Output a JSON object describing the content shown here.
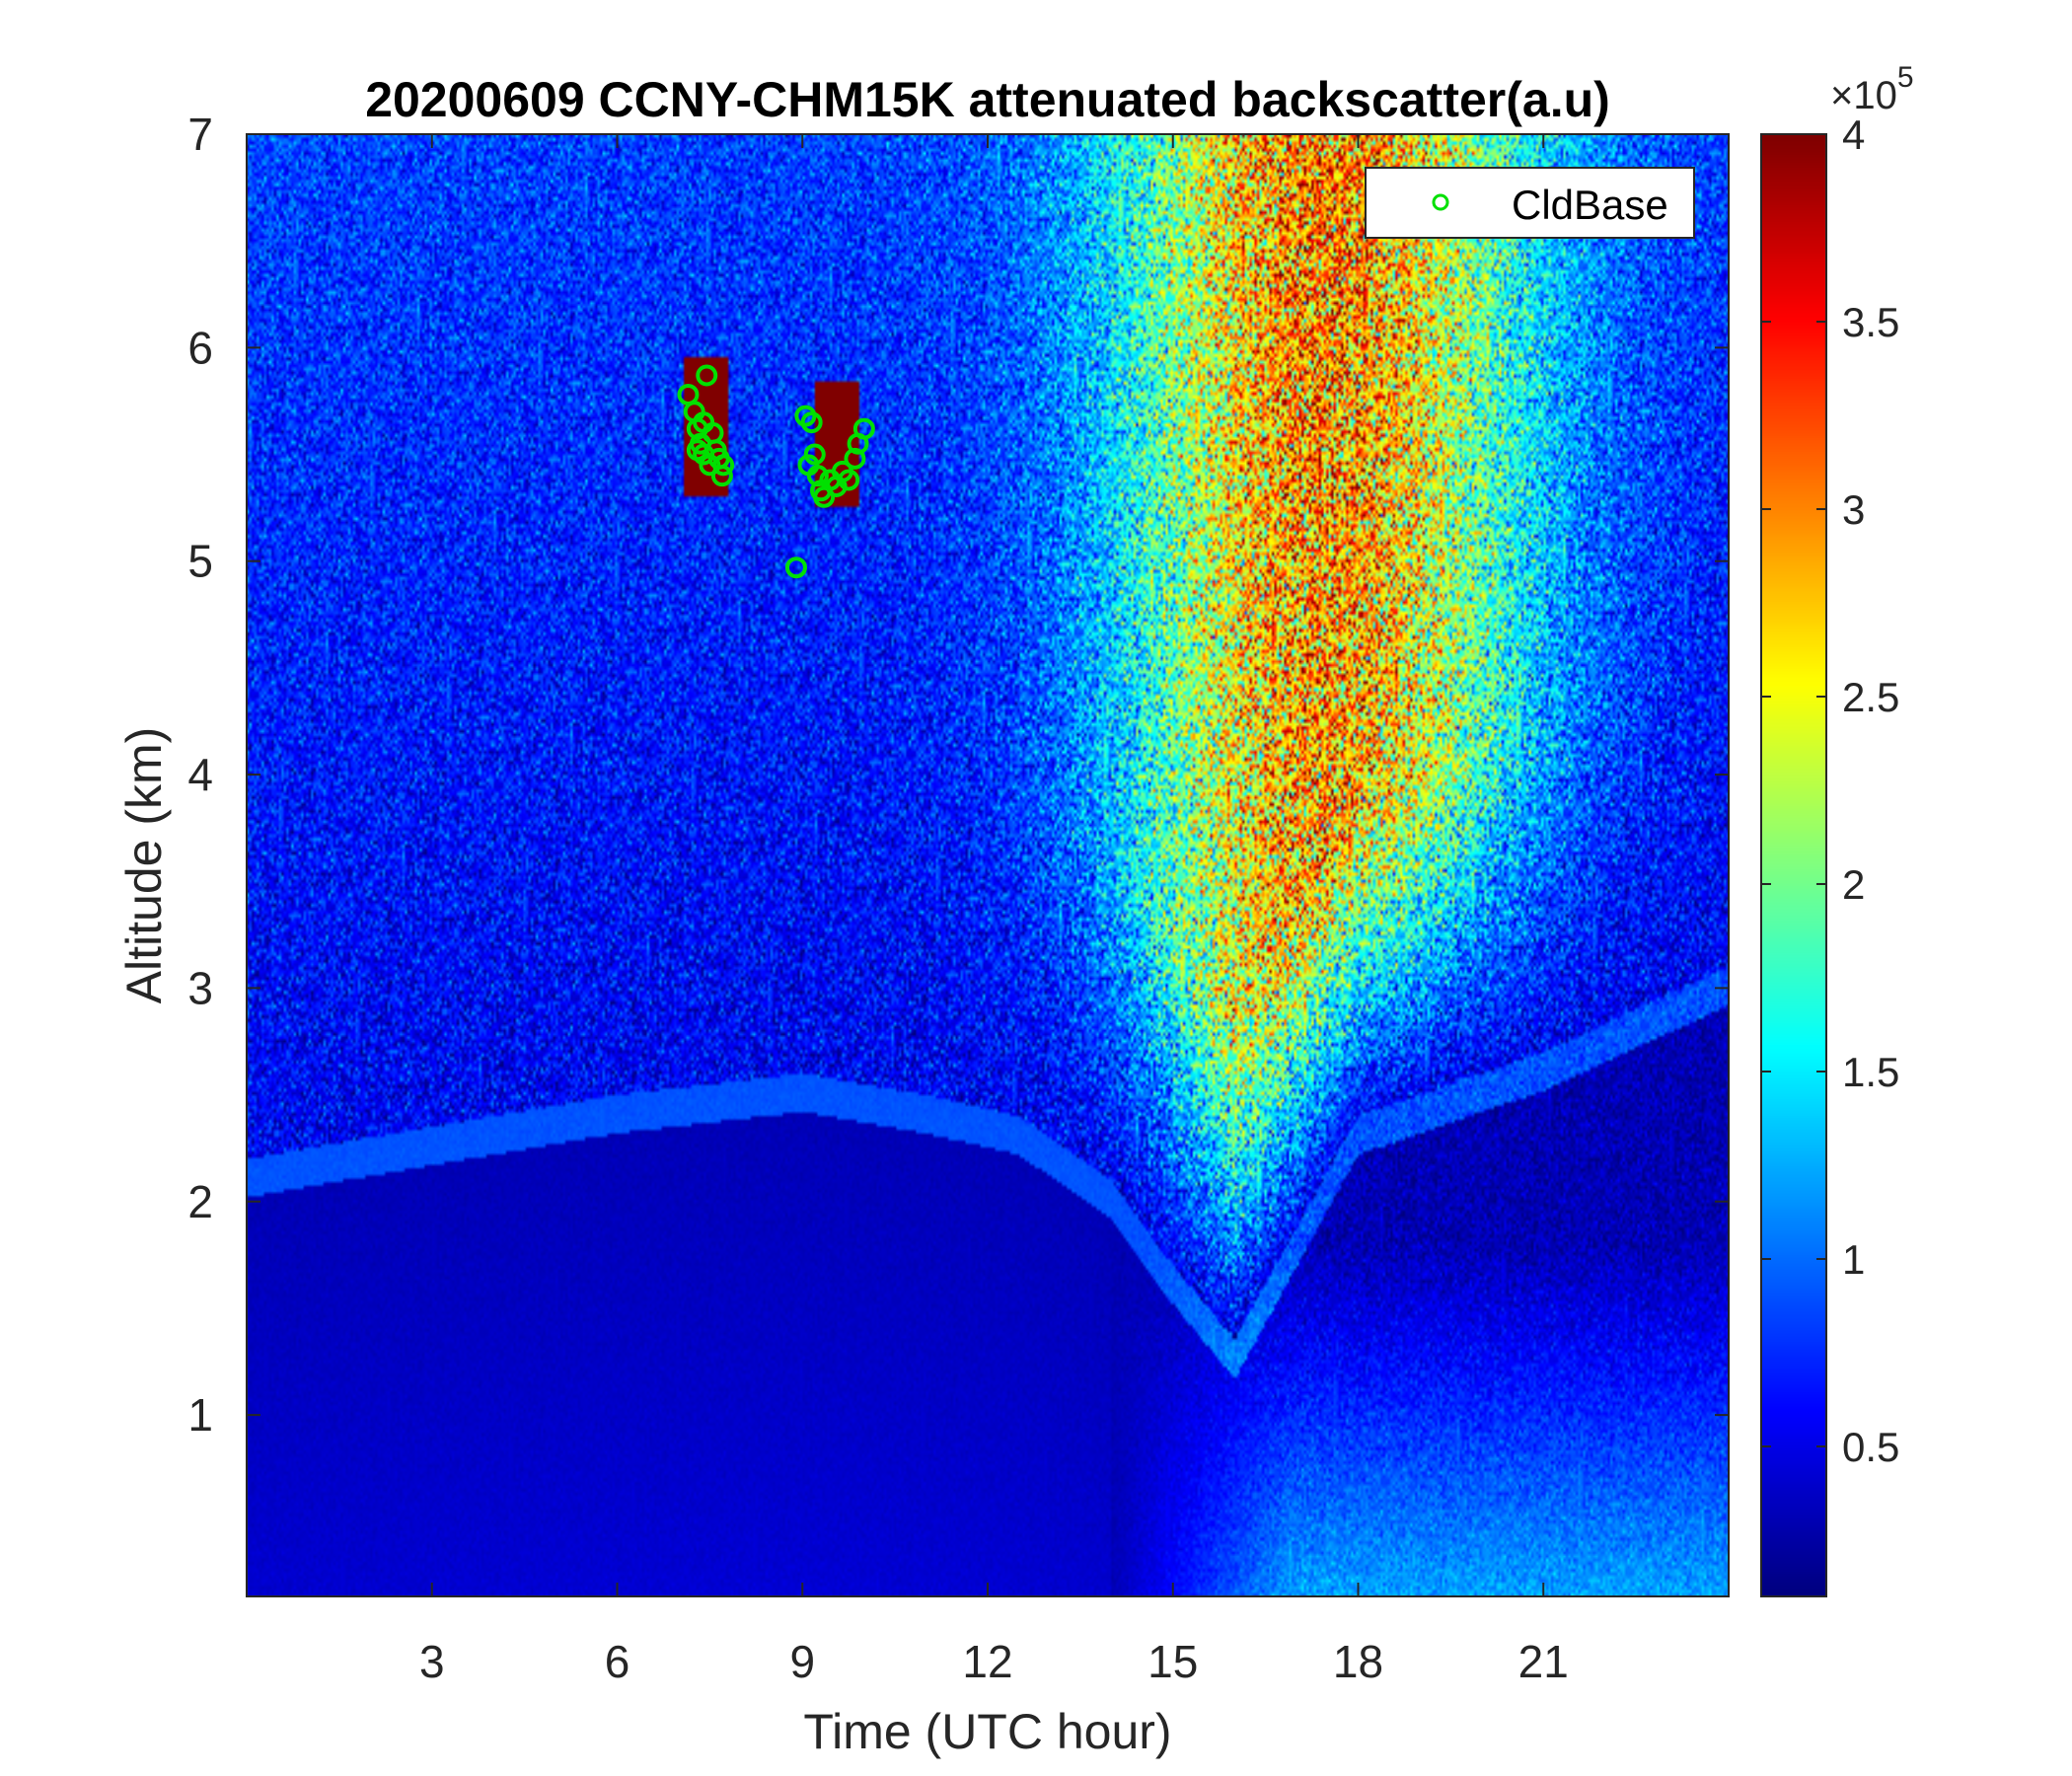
{
  "chart_data": {
    "type": "heatmap",
    "title": "20200609 CCNY-CHM15K attenuated backscatter(a.u)",
    "xlabel": "Time (UTC hour)",
    "ylabel": "Altitude (km)",
    "xlim": [
      0,
      24
    ],
    "ylim": [
      0.15,
      7
    ],
    "xticks": [
      3,
      6,
      9,
      12,
      15,
      18,
      21
    ],
    "yticks": [
      1,
      2,
      3,
      4,
      5,
      6,
      7
    ],
    "colormap": "jet",
    "colorbar": {
      "ticks": [
        0.5,
        1,
        1.5,
        2,
        2.5,
        3,
        3.5,
        4
      ],
      "tick_labels": [
        "0.5",
        "1",
        "1.5",
        "2",
        "2.5",
        "3",
        "3.5",
        "4"
      ],
      "exponent_label": "×10",
      "exponent_power": "5",
      "range": [
        0.1,
        4
      ]
    },
    "legend": {
      "placement": "top-right",
      "entries": [
        {
          "name": "CldBase",
          "marker": "circle",
          "color": "#00e000"
        }
      ]
    },
    "cloud_base_points": [
      {
        "x": 7.15,
        "y": 5.78
      },
      {
        "x": 7.25,
        "y": 5.7
      },
      {
        "x": 7.3,
        "y": 5.62
      },
      {
        "x": 7.35,
        "y": 5.55
      },
      {
        "x": 7.4,
        "y": 5.5
      },
      {
        "x": 7.45,
        "y": 5.87
      },
      {
        "x": 7.5,
        "y": 5.45
      },
      {
        "x": 7.55,
        "y": 5.6
      },
      {
        "x": 7.6,
        "y": 5.52
      },
      {
        "x": 7.65,
        "y": 5.48
      },
      {
        "x": 7.7,
        "y": 5.4
      },
      {
        "x": 7.72,
        "y": 5.45
      },
      {
        "x": 7.3,
        "y": 5.52
      },
      {
        "x": 7.4,
        "y": 5.65
      },
      {
        "x": 8.9,
        "y": 4.97
      },
      {
        "x": 9.05,
        "y": 5.68
      },
      {
        "x": 9.15,
        "y": 5.65
      },
      {
        "x": 9.25,
        "y": 5.4
      },
      {
        "x": 9.3,
        "y": 5.33
      },
      {
        "x": 9.35,
        "y": 5.3
      },
      {
        "x": 9.45,
        "y": 5.38
      },
      {
        "x": 9.55,
        "y": 5.35
      },
      {
        "x": 9.65,
        "y": 5.42
      },
      {
        "x": 9.75,
        "y": 5.38
      },
      {
        "x": 9.85,
        "y": 5.48
      },
      {
        "x": 9.9,
        "y": 5.55
      },
      {
        "x": 10.0,
        "y": 5.62
      },
      {
        "x": 9.2,
        "y": 5.5
      },
      {
        "x": 9.1,
        "y": 5.45
      }
    ],
    "features": [
      {
        "name": "boundary layer top",
        "x": [
          0,
          3,
          6,
          9,
          11,
          12.5,
          14,
          15,
          16,
          18,
          21,
          24
        ],
        "y": [
          2.2,
          2.35,
          2.5,
          2.6,
          2.5,
          2.4,
          2.1,
          1.7,
          1.35,
          2.4,
          2.7,
          3.1
        ]
      },
      {
        "name": "cloud 1",
        "x": [
          7.1,
          7.8
        ],
        "y": [
          5.3,
          5.95
        ],
        "value": 4
      },
      {
        "name": "cloud 2",
        "x": [
          9.2,
          9.9
        ],
        "y": [
          5.25,
          5.85
        ],
        "value": 4
      }
    ]
  }
}
